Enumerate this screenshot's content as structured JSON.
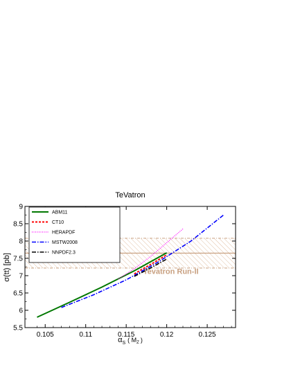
{
  "chart_data": {
    "type": "line",
    "title": "TeVatron",
    "xlabel_main": "α",
    "xlabel_sub": "S",
    "xlabel_arg": "( M",
    "xlabel_arg_sub": "Z",
    "xlabel_close": ")",
    "ylabel": "σ(tt) [pb]",
    "xlim": [
      0.1025,
      0.1285
    ],
    "ylim": [
      5.5,
      9
    ],
    "xticks": [
      0.105,
      0.11,
      0.115,
      0.12,
      0.125
    ],
    "xtick_labels": [
      "0.105",
      "0.11",
      "0.115",
      "0.12",
      "0.125"
    ],
    "yticks": [
      5.5,
      6,
      6.5,
      7,
      7.5,
      8,
      8.5,
      9
    ],
    "ytick_labels": [
      "5.5",
      "6",
      "6.5",
      "7",
      "7.5",
      "8",
      "8.5",
      "9"
    ],
    "grid": false,
    "legend_position": "top-left",
    "band": {
      "label": "Tevatron Run-II",
      "central": 7.65,
      "low": 7.22,
      "high": 8.08,
      "color": "#c8a080"
    },
    "series": [
      {
        "name": "ABM11",
        "color": "#007700",
        "dash": "",
        "width": 2,
        "points": [
          [
            0.104,
            5.8
          ],
          [
            0.108,
            6.23
          ],
          [
            0.112,
            6.67
          ],
          [
            0.116,
            7.14
          ],
          [
            0.12,
            7.66
          ]
        ]
      },
      {
        "name": "CT10",
        "color": "#ff0000",
        "dash": "3,2",
        "width": 2,
        "points": [
          [
            0.116,
            7.05
          ],
          [
            0.117,
            7.19
          ],
          [
            0.118,
            7.32
          ],
          [
            0.119,
            7.46
          ],
          [
            0.12,
            7.6
          ]
        ]
      },
      {
        "name": "HERAPDF",
        "color": "#ff00ff",
        "dash": "1,1.5",
        "width": 1.2,
        "points": [
          [
            0.114,
            6.9
          ],
          [
            0.116,
            7.2
          ],
          [
            0.118,
            7.55
          ],
          [
            0.12,
            7.95
          ],
          [
            0.122,
            8.35
          ]
        ]
      },
      {
        "name": "MSTW2008",
        "color": "#0000ff",
        "dash": "6,2,1.5,2",
        "width": 1.6,
        "points": [
          [
            0.107,
            6.08
          ],
          [
            0.111,
            6.45
          ],
          [
            0.115,
            6.88
          ],
          [
            0.119,
            7.4
          ],
          [
            0.123,
            8.0
          ],
          [
            0.127,
            8.75
          ]
        ]
      },
      {
        "name": "NNPDF2.3",
        "color": "#000000",
        "dash": "6,2,1.5,2",
        "width": 1.6,
        "points": [
          [
            0.116,
            6.98
          ],
          [
            0.117,
            7.1
          ],
          [
            0.118,
            7.22
          ],
          [
            0.119,
            7.35
          ],
          [
            0.12,
            7.48
          ]
        ]
      }
    ]
  }
}
